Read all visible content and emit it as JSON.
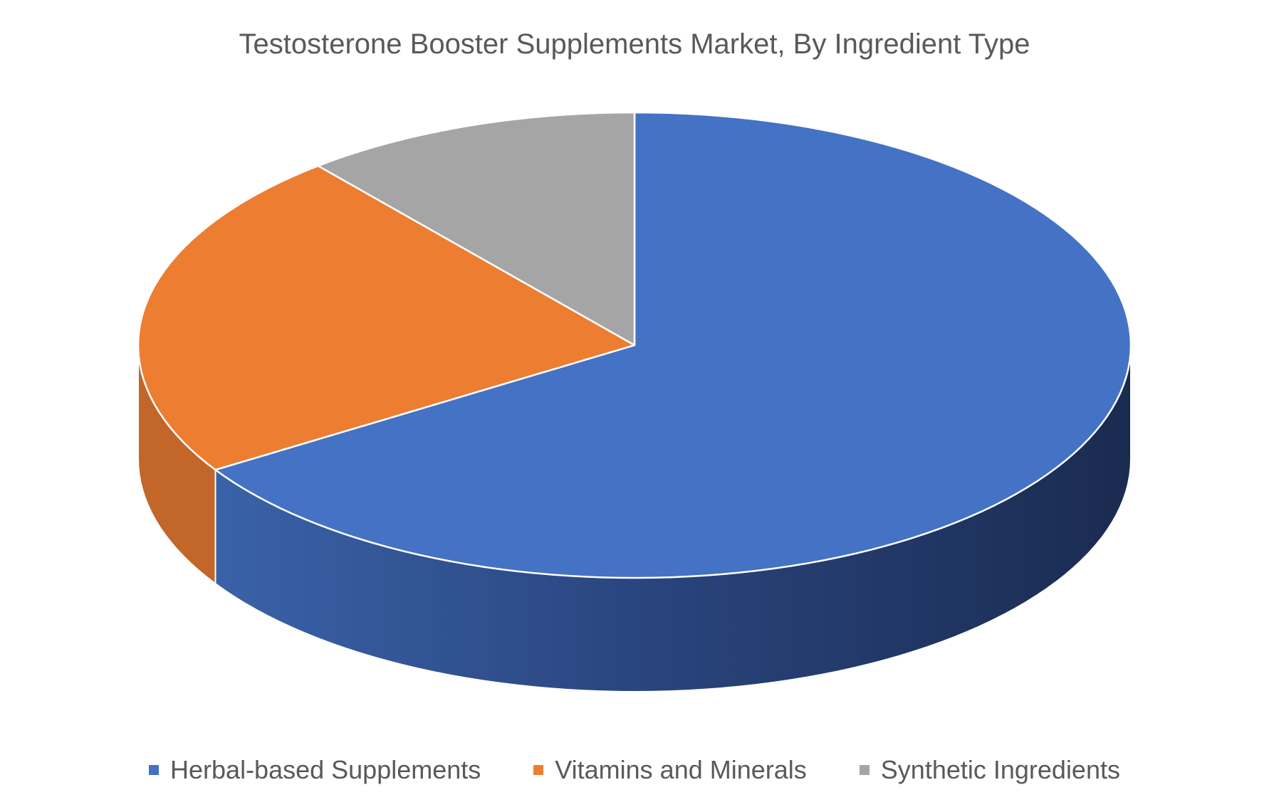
{
  "chart_data": {
    "type": "pie",
    "title": "Testosterone Booster Supplements Market, By Ingredient Type",
    "categories": [
      "Herbal-based Supplements",
      "Vitamins and Minerals",
      "Synthetic Ingredients"
    ],
    "values": [
      66,
      23,
      11
    ],
    "colors": [
      "#4472C4",
      "#ED7D31",
      "#A5A5A5"
    ],
    "legend_position": "bottom",
    "style": "3d"
  }
}
